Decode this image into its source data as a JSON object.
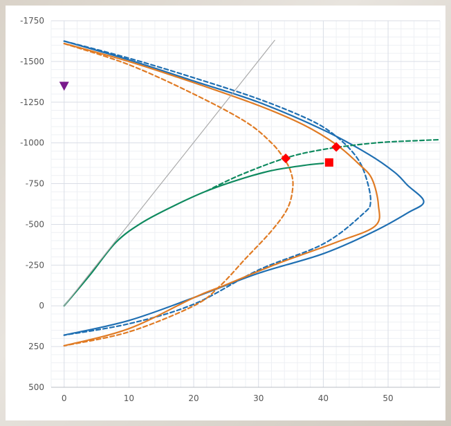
{
  "chart_data": {
    "type": "line",
    "title": "",
    "xlabel": "",
    "ylabel": "",
    "xlim": [
      -2,
      58
    ],
    "ylim": [
      -1750,
      500
    ],
    "y_reversed": true,
    "x_ticks": [
      0,
      10,
      20,
      30,
      40,
      50
    ],
    "y_ticks": [
      -1750,
      -1500,
      -1250,
      -1000,
      -750,
      -500,
      -250,
      0,
      250,
      500
    ],
    "x_tick_labels": [
      "0",
      "10",
      "20",
      "30",
      "40",
      "50"
    ],
    "y_tick_labels": [
      "-1750",
      "-1500",
      "-1250",
      "-1000",
      "-750",
      "-500",
      "-250",
      "0",
      "250",
      "500"
    ],
    "grid": true,
    "minor_grid": true,
    "series": [
      {
        "color": "#1f6fb2",
        "dash": "solid",
        "points": [
          [
            0,
            -1625
          ],
          [
            10,
            -1510
          ],
          [
            20,
            -1380
          ],
          [
            30,
            -1250
          ],
          [
            40,
            -1080
          ],
          [
            47,
            -930
          ],
          [
            51,
            -820
          ],
          [
            53,
            -740
          ],
          [
            55.5,
            -640
          ],
          [
            53,
            -570
          ],
          [
            48,
            -460
          ],
          [
            40,
            -320
          ],
          [
            30,
            -200
          ],
          [
            20,
            -50
          ],
          [
            10,
            90
          ],
          [
            0,
            180
          ]
        ]
      },
      {
        "color": "#1f6fb2",
        "dash": "dashed",
        "points": [
          [
            0,
            -1625
          ],
          [
            10,
            -1520
          ],
          [
            20,
            -1400
          ],
          [
            30,
            -1270
          ],
          [
            38,
            -1140
          ],
          [
            42,
            -1040
          ],
          [
            45,
            -920
          ],
          [
            46.5,
            -800
          ],
          [
            47.3,
            -640
          ],
          [
            46,
            -560
          ],
          [
            40,
            -380
          ],
          [
            30,
            -220
          ],
          [
            20,
            -10
          ],
          [
            10,
            110
          ],
          [
            0,
            180
          ]
        ]
      },
      {
        "color": "#e07b24",
        "dash": "solid",
        "points": [
          [
            0,
            -1610
          ],
          [
            10,
            -1500
          ],
          [
            20,
            -1370
          ],
          [
            30,
            -1230
          ],
          [
            37,
            -1110
          ],
          [
            42,
            -990
          ],
          [
            45.5,
            -870
          ],
          [
            47.5,
            -780
          ],
          [
            48.5,
            -620
          ],
          [
            48,
            -490
          ],
          [
            42,
            -390
          ],
          [
            33,
            -260
          ],
          [
            25,
            -130
          ],
          [
            20,
            -50
          ],
          [
            10,
            140
          ],
          [
            0,
            245
          ]
        ]
      },
      {
        "color": "#e07b24",
        "dash": "dashed",
        "points": [
          [
            0,
            -1610
          ],
          [
            10,
            -1480
          ],
          [
            20,
            -1300
          ],
          [
            28,
            -1130
          ],
          [
            32,
            -1000
          ],
          [
            34,
            -900
          ],
          [
            35,
            -820
          ],
          [
            35.3,
            -730
          ],
          [
            34.5,
            -600
          ],
          [
            32,
            -460
          ],
          [
            28,
            -290
          ],
          [
            24,
            -120
          ],
          [
            20,
            0
          ],
          [
            10,
            160
          ],
          [
            0,
            245
          ]
        ]
      },
      {
        "color": "#0f8a5f",
        "dash": "solid",
        "points": [
          [
            0,
            0
          ],
          [
            4,
            -190
          ],
          [
            8,
            -390
          ],
          [
            12,
            -510
          ],
          [
            17,
            -615
          ],
          [
            22,
            -705
          ],
          [
            27,
            -775
          ],
          [
            32,
            -830
          ],
          [
            37,
            -862
          ],
          [
            40,
            -875
          ]
        ]
      },
      {
        "color": "#0f8a5f",
        "dash": "dashed",
        "points": [
          [
            22,
            -705
          ],
          [
            27,
            -800
          ],
          [
            34,
            -905
          ],
          [
            40,
            -960
          ],
          [
            48,
            -1000
          ],
          [
            55,
            -1015
          ],
          [
            58,
            -1020
          ]
        ]
      },
      {
        "color": "#aaaaaa",
        "dash": "solid",
        "points": [
          [
            0,
            0
          ],
          [
            32.5,
            -1630
          ]
        ]
      }
    ],
    "markers": [
      {
        "shape": "triangle-down",
        "color": "#7a1a8c",
        "x": 0,
        "y": -1350
      },
      {
        "shape": "diamond",
        "color": "#ff0000",
        "x": 34.2,
        "y": -905
      },
      {
        "shape": "diamond",
        "color": "#ff0000",
        "x": 42.0,
        "y": -975
      },
      {
        "shape": "square",
        "color": "#ff0000",
        "x": 40.9,
        "y": -880
      }
    ]
  }
}
